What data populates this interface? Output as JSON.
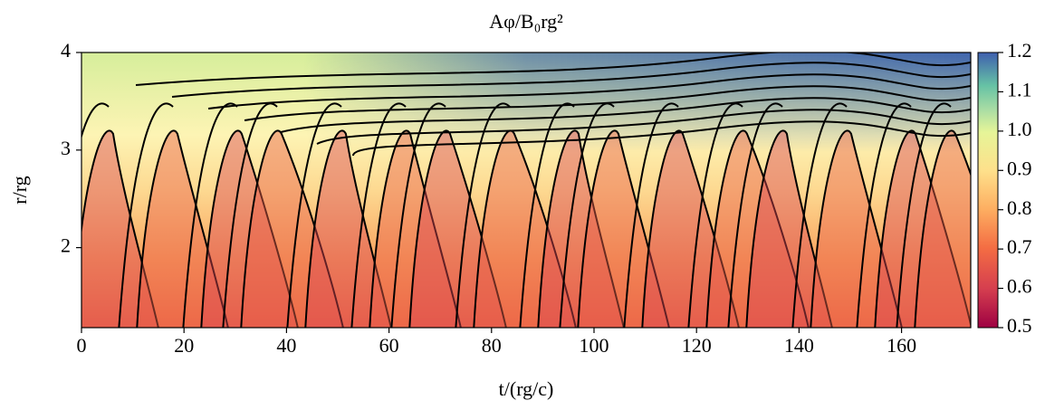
{
  "chart_data": {
    "type": "heatmap",
    "title": "Aφ/B₀rg²",
    "x_label": "t/(rg/c)",
    "y_label": "r/rg",
    "xlim": [
      0,
      173.5
    ],
    "xticks": [
      0,
      20,
      40,
      60,
      80,
      100,
      120,
      140,
      160
    ],
    "ylim": [
      1.18,
      4
    ],
    "yticks": [
      2,
      3,
      4
    ],
    "colormap": "Spectral",
    "clim": [
      0.5,
      1.2
    ],
    "cticks": [
      0.5,
      0.6,
      0.7,
      0.8,
      0.9,
      {
        "value": 1,
        "label": "1.0"
      },
      1.1,
      1.2
    ]
  }
}
